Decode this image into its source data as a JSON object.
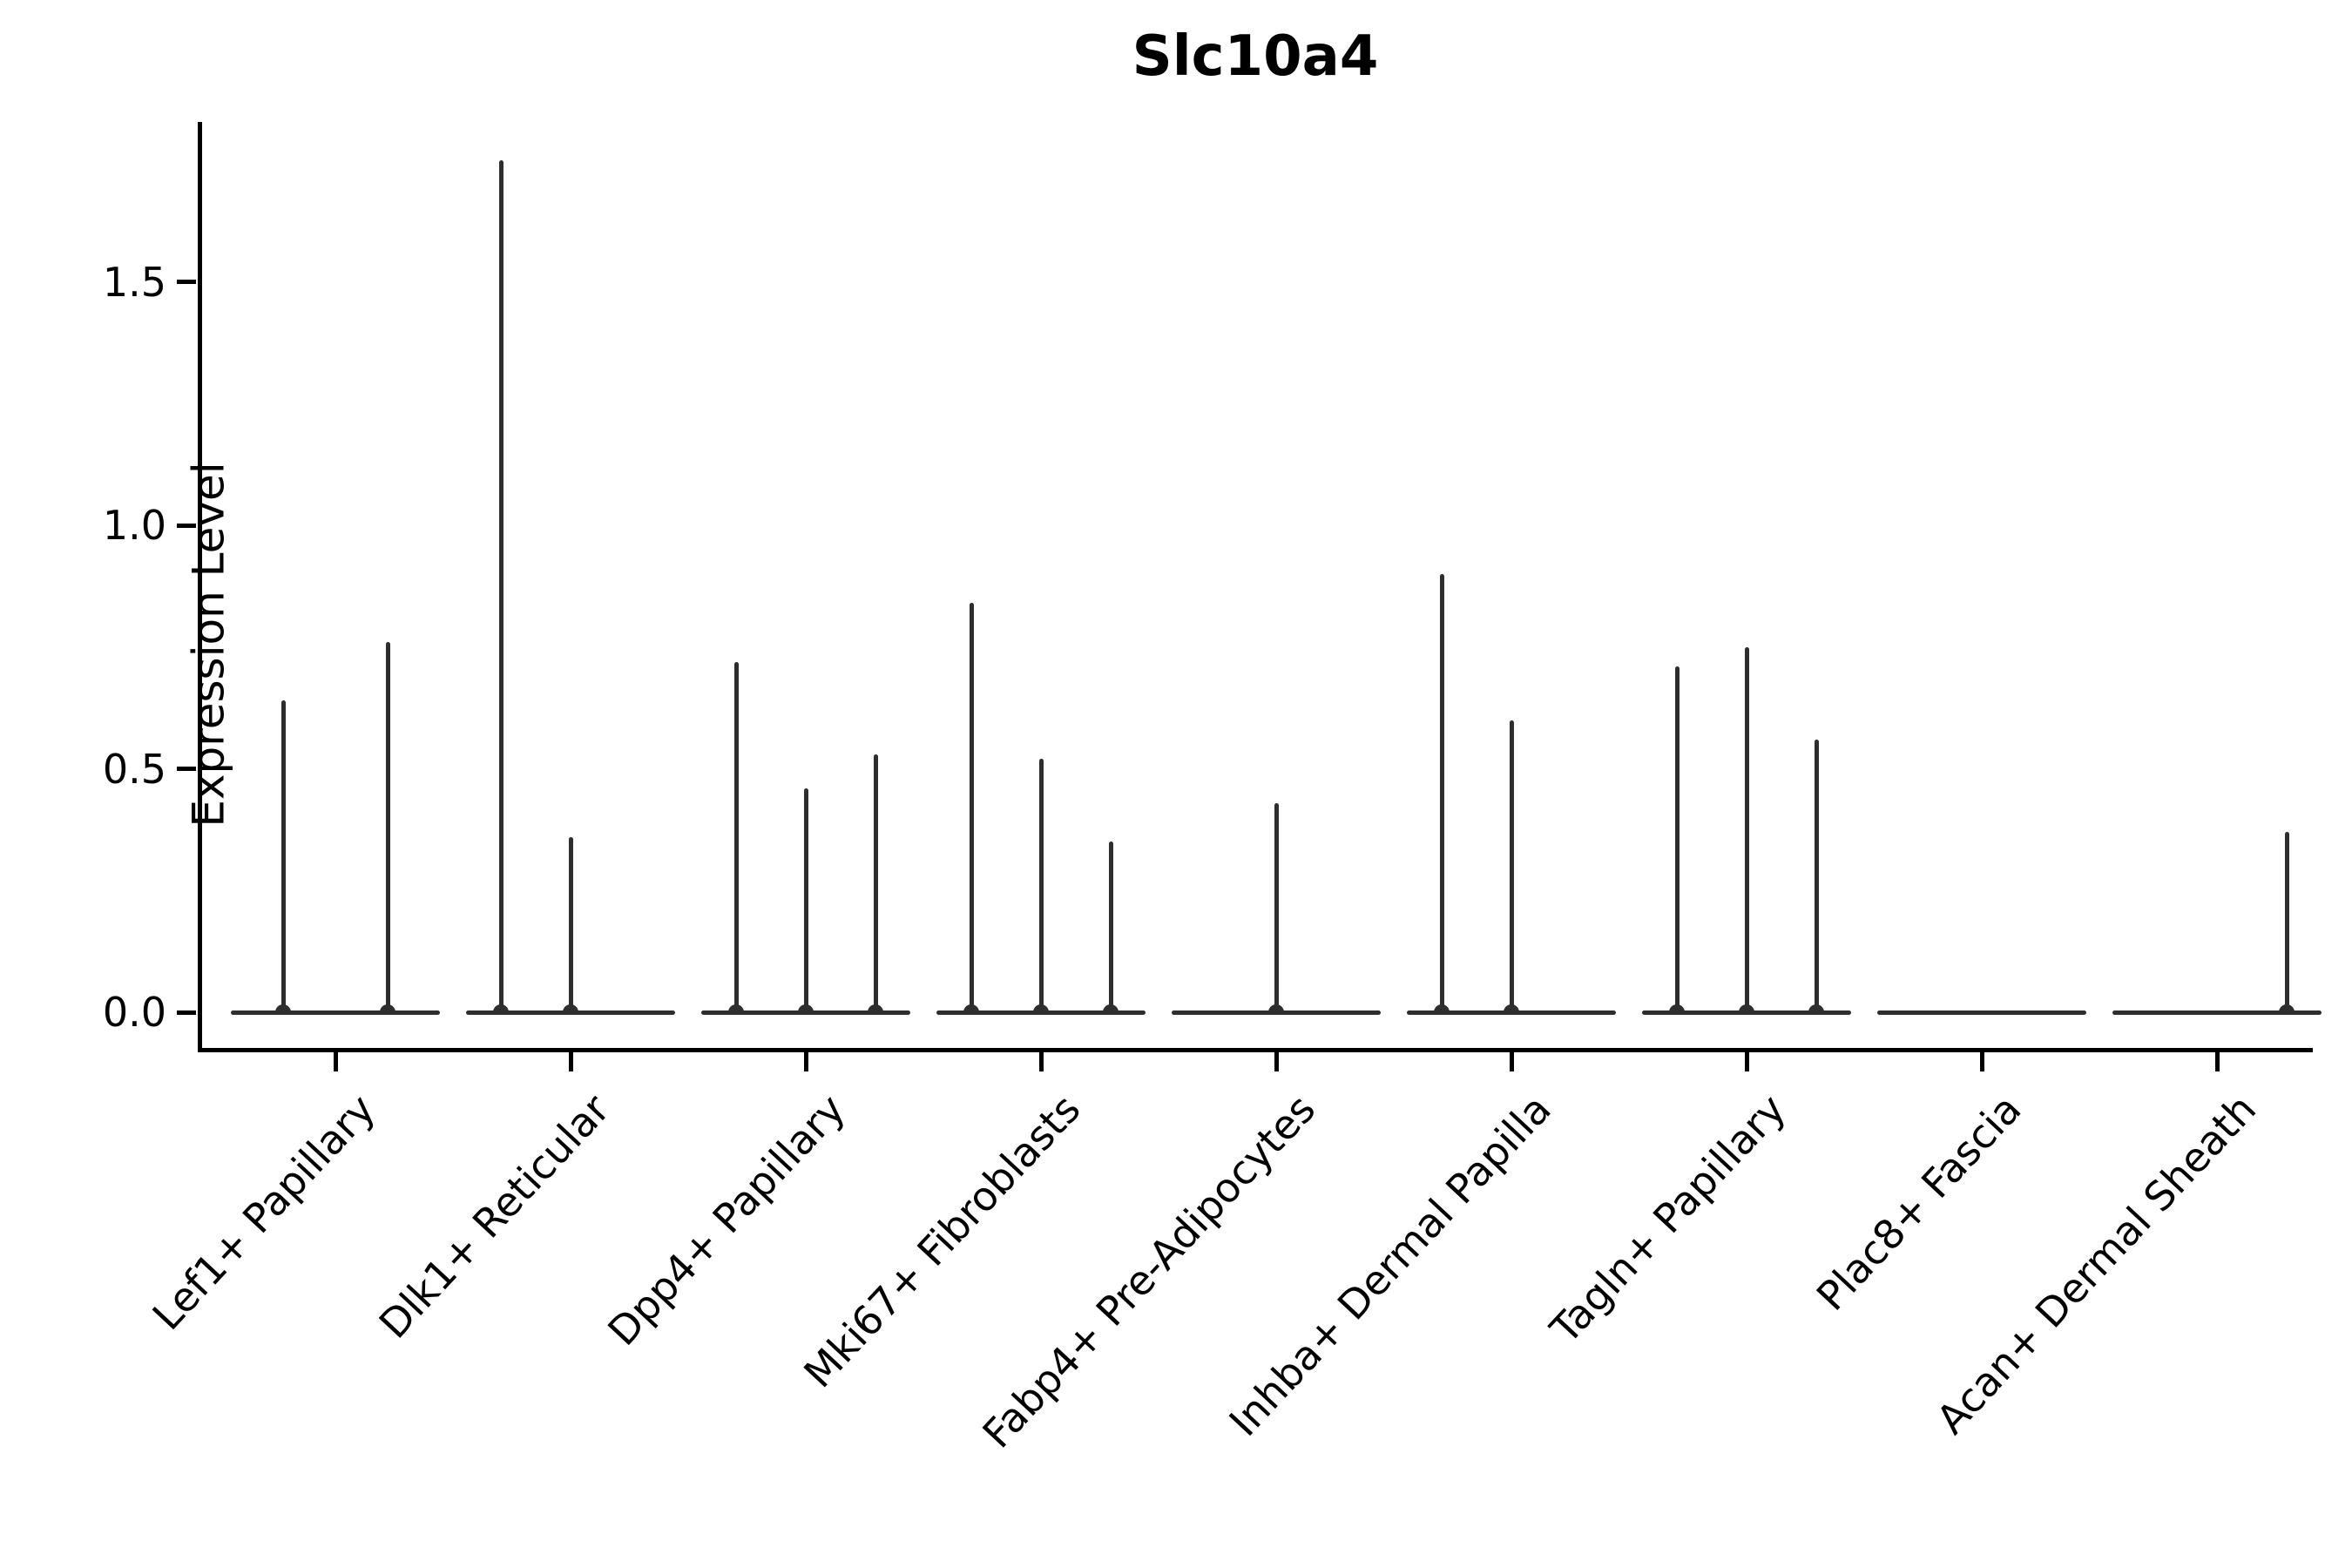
{
  "figure": {
    "title": "Slc10a4"
  },
  "y_axis": {
    "label": "Expression Level",
    "ticks": [
      "0.0",
      "0.5",
      "1.0",
      "1.5"
    ]
  },
  "x_axis": {
    "categories": [
      "Lef1+ Papillary",
      "Dlk1+ Reticular",
      "Dpp4+ Papillary",
      "Mki67+ Fibroblasts",
      "Fabp4+ Pre-Adipocytes",
      "Inhba+ Dermal Papilla",
      "Tagln+ Papillary",
      "Plac8+ Fascia",
      "Acan+ Dermal Sheath"
    ]
  },
  "colors": {
    "violin_line": "#2e2e2e",
    "axis": "#000000",
    "text": "#000000",
    "background": "#ffffff"
  },
  "chart_data": {
    "type": "violin",
    "title": "Slc10a4",
    "xlabel": "",
    "ylabel": "Expression Level",
    "ylim": [
      0,
      1.83
    ],
    "yticks": [
      0.0,
      0.5,
      1.0,
      1.5
    ],
    "legend": "none",
    "grid": false,
    "description": "Needle-like violins flat at expression 0 with thin spikes reaching the max expression of each replicate violin; spike horizontal position is the replicate slot offset within each cluster group.",
    "categories": [
      "Lef1+ Papillary",
      "Dlk1+ Reticular",
      "Dpp4+ Papillary",
      "Mki67+ Fibroblasts",
      "Fabp4+ Pre-Adipocytes",
      "Inhba+ Dermal Papilla",
      "Tagln+ Papillary",
      "Plac8+ Fascia",
      "Acan+ Dermal Sheath"
    ],
    "groups": [
      {
        "label": "Lef1+ Papillary",
        "baseline": 0.0,
        "spikes": [
          {
            "slot_dx": -60,
            "max": 0.64
          },
          {
            "slot_dx": 60,
            "max": 0.76
          }
        ]
      },
      {
        "label": "Dlk1+ Reticular",
        "baseline": 0.0,
        "spikes": [
          {
            "slot_dx": -80,
            "max": 1.75
          },
          {
            "slot_dx": 0,
            "max": 0.36
          }
        ]
      },
      {
        "label": "Dpp4+ Papillary",
        "baseline": 0.0,
        "spikes": [
          {
            "slot_dx": -80,
            "max": 0.72
          },
          {
            "slot_dx": 0,
            "max": 0.46
          },
          {
            "slot_dx": 80,
            "max": 0.53
          }
        ]
      },
      {
        "label": "Mki67+ Fibroblasts",
        "baseline": 0.0,
        "spikes": [
          {
            "slot_dx": -80,
            "max": 0.84
          },
          {
            "slot_dx": 0,
            "max": 0.52
          },
          {
            "slot_dx": 80,
            "max": 0.35
          }
        ]
      },
      {
        "label": "Fabp4+ Pre-Adipocytes",
        "baseline": 0.0,
        "spikes": [
          {
            "slot_dx": 0,
            "max": 0.43
          }
        ]
      },
      {
        "label": "Inhba+ Dermal Papilla",
        "baseline": 0.0,
        "spikes": [
          {
            "slot_dx": -80,
            "max": 0.9
          },
          {
            "slot_dx": 0,
            "max": 0.6
          }
        ]
      },
      {
        "label": "Tagln+ Papillary",
        "baseline": 0.0,
        "spikes": [
          {
            "slot_dx": -80,
            "max": 0.71
          },
          {
            "slot_dx": 0,
            "max": 0.75
          },
          {
            "slot_dx": 80,
            "max": 0.56
          }
        ]
      },
      {
        "label": "Plac8+ Fascia",
        "baseline": 0.0,
        "spikes": []
      },
      {
        "label": "Acan+ Dermal Sheath",
        "baseline": 0.0,
        "spikes": [
          {
            "slot_dx": 80,
            "max": 0.37
          }
        ]
      }
    ]
  }
}
